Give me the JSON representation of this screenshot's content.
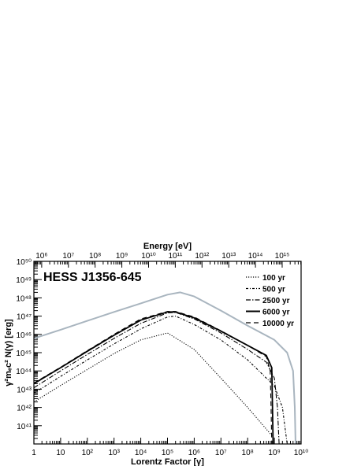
{
  "chart_data": {
    "type": "line",
    "title": "HESS J1356-645",
    "xlabel": "Lorentz Factor [γ]",
    "x2label": "Energy [eV]",
    "ylabel": "γ²mₑc² N(γ) [erg]",
    "xscale": "log",
    "yscale": "log",
    "xlim": [
      1,
      10000000000
    ],
    "ylim": [
      1e+40,
      1e+50
    ],
    "x_tick_labels": [
      "1",
      "10",
      "10²",
      "10³",
      "10⁴",
      "10⁵",
      "10⁶",
      "10⁷",
      "10⁸",
      "10⁹",
      "10¹⁰"
    ],
    "x2_tick_labels": [
      "10⁶",
      "10⁷",
      "10⁸",
      "10⁹",
      "10¹⁰",
      "10¹¹",
      "10¹²",
      "10¹³",
      "10¹⁴",
      "10¹⁵"
    ],
    "y_tick_labels": [
      "10⁴¹",
      "10⁴²",
      "10⁴³",
      "10⁴⁴",
      "10⁴⁵",
      "10⁴⁶",
      "10⁴⁷",
      "10⁴⁸",
      "10⁴⁹",
      "10⁵⁰"
    ],
    "legend_position": "top-right",
    "grid": false,
    "series": [
      {
        "name": "100 yr",
        "dash": "dotted",
        "color": "#000000",
        "x": [
          1,
          10,
          100,
          1000,
          10000,
          100000,
          1000000,
          10000000,
          100000000,
          1000000000
        ],
        "y": [
          2e+42,
          1.6e+43,
          1.2e+44,
          9e+44,
          5e+45,
          1.2e+46,
          1.5e+45,
          4e+43,
          1e+42,
          2e+40
        ]
      },
      {
        "name": "500 yr",
        "dash": "dashdot-sparse",
        "color": "#000000",
        "x": [
          1,
          10,
          100,
          1000,
          10000,
          100000,
          200000,
          1000000,
          10000000,
          100000000,
          1000000000,
          2000000000,
          3000000000
        ],
        "y": [
          6e+42,
          5e+43,
          4e+44,
          3e+45,
          2e+46,
          9e+46,
          1e+47,
          3.5e+46,
          5e+45,
          4e+44,
          1.5e+43,
          1e+42,
          1e+40
        ]
      },
      {
        "name": "2500 yr",
        "dash": "dashdot",
        "color": "#000000",
        "x": [
          1,
          10,
          100,
          1000,
          10000,
          100000,
          200000,
          1000000,
          10000000,
          100000000,
          500000000,
          1000000000,
          1300000000,
          1500000000
        ],
        "y": [
          1.2e+43,
          1e+44,
          8e+44,
          6e+45,
          4e+46,
          1.5e+47,
          1.6e+47,
          7e+46,
          1.2e+46,
          1.5e+45,
          3e+44,
          4e+43,
          1e+42,
          1e+40
        ]
      },
      {
        "name": "6000 yr",
        "dash": "solid",
        "color": "#000000",
        "x": [
          1,
          10,
          100,
          1000,
          10000,
          100000,
          200000,
          1000000,
          10000000,
          100000000,
          500000000,
          800000000,
          850000000,
          900000000
        ],
        "y": [
          2e+43,
          1.5e+44,
          1.2e+45,
          9e+45,
          6e+46,
          1.7e+47,
          1.7e+47,
          8e+46,
          1.5e+46,
          2.5e+45,
          7e+44,
          1.5e+44,
          1e+42,
          1e+40
        ]
      },
      {
        "name": "10000 yr",
        "dash": "dashed",
        "color": "#000000",
        "x": [
          1,
          10,
          100,
          1000,
          10000,
          100000,
          200000,
          1000000,
          10000000,
          100000000,
          500000000,
          700000000,
          750000000,
          800000000
        ],
        "y": [
          2.2e+43,
          1.6e+44,
          1.3e+45,
          1e+46,
          7e+46,
          1.8e+47,
          1.8e+47,
          9e+46,
          1.6e+46,
          2.5e+45,
          6e+44,
          1e+44,
          1e+42,
          1e+40
        ]
      },
      {
        "dash": "solid",
        "color": "#a9b5bf",
        "x": [
          1,
          10,
          100,
          1000,
          10000,
          100000,
          300000,
          1000000,
          10000000,
          100000000,
          1000000000,
          3000000000,
          5000000000,
          5800000000,
          6200000000
        ],
        "y": [
          6e+45,
          1.8e+46,
          5.5e+46,
          1.7e+47,
          5e+47,
          1.5e+48,
          2e+48,
          1.2e+48,
          2e+47,
          3e+46,
          5e+45,
          1e+45,
          1e+44,
          1e+42,
          1e+40
        ]
      }
    ]
  }
}
